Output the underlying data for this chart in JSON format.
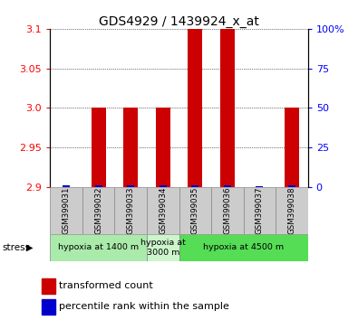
{
  "title": "GDS4929 / 1439924_x_at",
  "samples": [
    "GSM399031",
    "GSM399032",
    "GSM399033",
    "GSM399034",
    "GSM399035",
    "GSM399036",
    "GSM399037",
    "GSM399038"
  ],
  "red_values": [
    2.9,
    3.0,
    3.0,
    3.0,
    3.1,
    3.1,
    2.9,
    3.0
  ],
  "blue_values": [
    2.902,
    2.902,
    2.902,
    2.902,
    2.902,
    2.902,
    2.901,
    2.902
  ],
  "ylim": [
    2.9,
    3.1
  ],
  "yticks_left": [
    2.9,
    2.95,
    3.0,
    3.05,
    3.1
  ],
  "yticks_right": [
    0,
    25,
    50,
    75,
    100
  ],
  "groups": [
    {
      "label": "hypoxia at 1400 m",
      "start": 0,
      "end": 3,
      "color": "#aaeaaa"
    },
    {
      "label": "hypoxia at\n3000 m",
      "start": 3,
      "end": 4,
      "color": "#ccf5cc"
    },
    {
      "label": "hypoxia at 4500 m",
      "start": 4,
      "end": 8,
      "color": "#55dd55"
    }
  ],
  "red_color": "#cc0000",
  "blue_color": "#0000cc",
  "sample_box_color": "#cccccc",
  "legend_red_label": "transformed count",
  "legend_blue_label": "percentile rank within the sample",
  "stress_label": "stress",
  "title_fontsize": 10,
  "tick_fontsize": 8,
  "label_fontsize": 8
}
